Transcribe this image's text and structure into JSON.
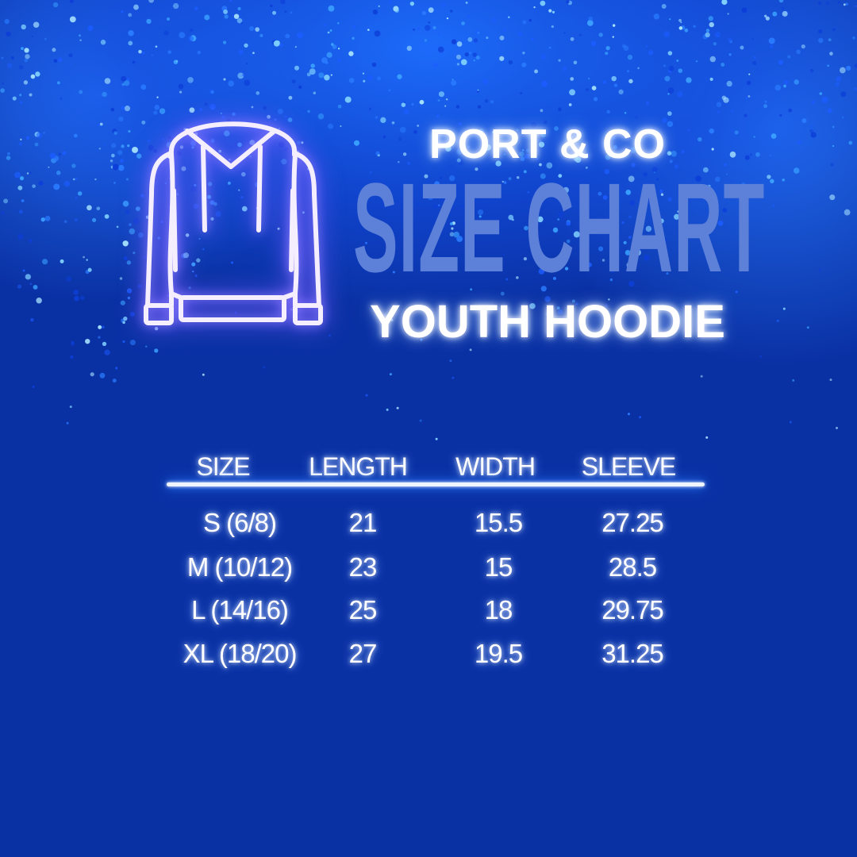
{
  "header": {
    "brand": "PORT & CO",
    "title": "SIZE CHART",
    "subtitle": "YOUTH HOODIE",
    "icon": "hoodie-icon"
  },
  "colors": {
    "background": "#0a31a4",
    "title": "#5d80d8",
    "neon_icon": "#8a7bff",
    "text": "#ffffff"
  },
  "table": {
    "columns": [
      "SIZE",
      "LENGTH",
      "WIDTH",
      "SLEEVE"
    ],
    "rows": [
      [
        "S (6/8)",
        "21",
        "15.5",
        "27.25"
      ],
      [
        "M (10/12)",
        "23",
        "15",
        "28.5"
      ],
      [
        "L (14/16)",
        "25",
        "18",
        "29.75"
      ],
      [
        "XL (18/20)",
        "27",
        "19.5",
        "31.25"
      ]
    ]
  }
}
